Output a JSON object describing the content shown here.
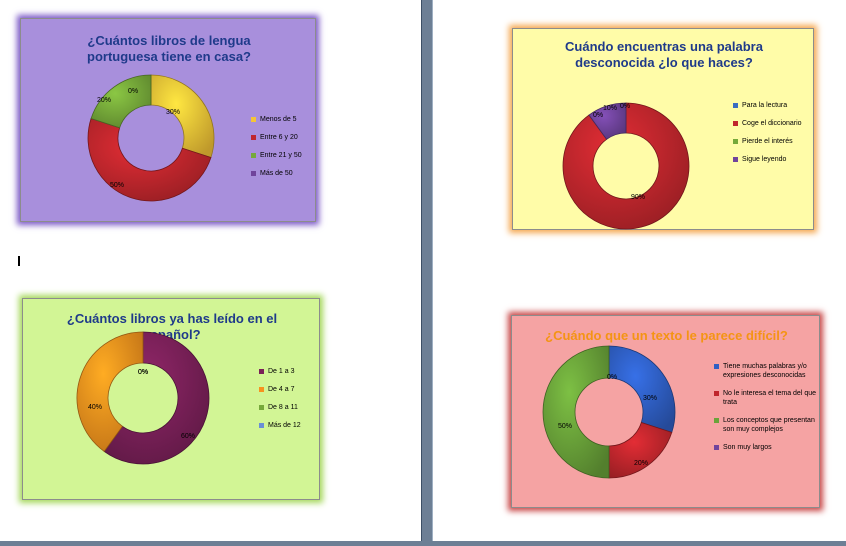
{
  "chart_data": [
    {
      "type": "pie",
      "variant": "doughnut",
      "title": "¿Cuántos libros de lengua portuguesa tiene en casa?",
      "background": "#a88fdc",
      "border_color": "#7b58c7",
      "title_color": "#1f3a8a",
      "categories": [
        "Menos de 5",
        "Entre 6 y 20",
        "Entre 21 y 50",
        "Más de 50"
      ],
      "values": [
        30,
        50,
        20,
        0
      ],
      "data_labels": [
        "30%",
        "50%",
        "20%",
        "0%"
      ],
      "colors": [
        "#f5c437",
        "#c0262d",
        "#76a93a",
        "#70449c"
      ],
      "legend_position": "right"
    },
    {
      "type": "pie",
      "variant": "doughnut",
      "title": "Cuándo encuentras una palabra desconocida ¿lo que haces?",
      "background": "#fffca8",
      "border_color": "#f5a850",
      "title_color": "#1f3a8a",
      "categories": [
        "Para la lectura",
        "Coge el diccionario",
        "Pierde el interés",
        "Sigue leyendo"
      ],
      "values": [
        0,
        90,
        0,
        10
      ],
      "data_labels": [
        "0%",
        "90%",
        "0%",
        "10%"
      ],
      "colors": [
        "#3a6cc1",
        "#c0262d",
        "#76a93a",
        "#70449c"
      ],
      "legend_position": "right"
    },
    {
      "type": "pie",
      "variant": "doughnut",
      "title": "¿Cuántos libros ya has leído en el español?",
      "background": "#d2f595",
      "border_color": "#a6d85c",
      "title_color": "#1f3a8a",
      "categories": [
        "De 1 a 3",
        "De 4 a 7",
        "De 8 a 11",
        "Más de 12"
      ],
      "values": [
        60,
        40,
        0,
        0
      ],
      "data_labels": [
        "60%",
        "40%",
        "0%",
        "0%"
      ],
      "colors": [
        "#7a2058",
        "#f7921e",
        "#76a93a",
        "#6a8fd6"
      ],
      "legend_position": "right"
    },
    {
      "type": "pie",
      "variant": "doughnut",
      "title": "¿Cuándo que un texto le parece difícil?",
      "background": "#f5a3a3",
      "border_color": "#c84545",
      "title_color": "#f49414",
      "categories": [
        "Tiene muchas palabras y/o expresiones desconocidas",
        "No le interesa el tema del que trata",
        "Los conceptos que presentan son muy complejos",
        "Son muy largos"
      ],
      "values": [
        30,
        20,
        50,
        0
      ],
      "data_labels": [
        "30%",
        "20%",
        "50%",
        "0%"
      ],
      "colors": [
        "#2f5fc4",
        "#c0262d",
        "#6aa33a",
        "#70449c"
      ],
      "legend_position": "right"
    }
  ]
}
